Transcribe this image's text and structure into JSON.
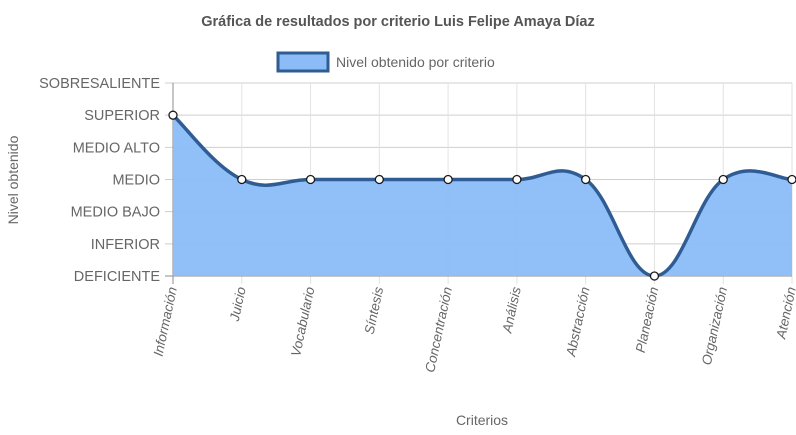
{
  "chart_data": {
    "type": "area",
    "title": "Gráfica de resultados por criterio Luis Felipe Amaya Díaz",
    "xlabel": "Criterios",
    "ylabel": "Nivel obtenido",
    "categories": [
      "Información",
      "Juicio",
      "Vocabulario",
      "Síntesis",
      "Concentración",
      "Análisis",
      "Abstracción",
      "Planeación",
      "Organización",
      "Atención"
    ],
    "y_levels": [
      "DEFICIENTE",
      "INFERIOR",
      "MEDIO BAJO",
      "MEDIO",
      "MEDIO ALTO",
      "SUPERIOR",
      "SOBRESALIENTE"
    ],
    "ylim": [
      0,
      6
    ],
    "series": [
      {
        "name": "Nivel obtenido por criterio",
        "values": [
          5,
          3,
          3,
          3,
          3,
          3,
          3,
          0,
          3,
          3
        ],
        "fill_color": "#8bbcf7",
        "line_color": "#2f5d93"
      }
    ],
    "legend": "top-center",
    "grid": true
  }
}
